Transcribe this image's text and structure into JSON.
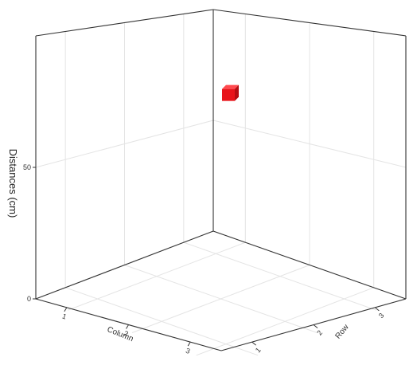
{
  "chart_data": {
    "type": "scatter3d",
    "title": "",
    "xlabel": "Column",
    "ylabel": "Row",
    "zlabel": "Distances (cm)",
    "x_ticks": [
      "1",
      "2",
      "3"
    ],
    "y_ticks": [
      "1",
      "2",
      "3"
    ],
    "z_ticks": [
      "0",
      "50"
    ],
    "zlim": [
      0,
      100
    ],
    "grid": true,
    "points": [
      {
        "column": 3,
        "row": 3,
        "distance": 62,
        "marker": "cube",
        "color": "#e8141b"
      }
    ]
  }
}
